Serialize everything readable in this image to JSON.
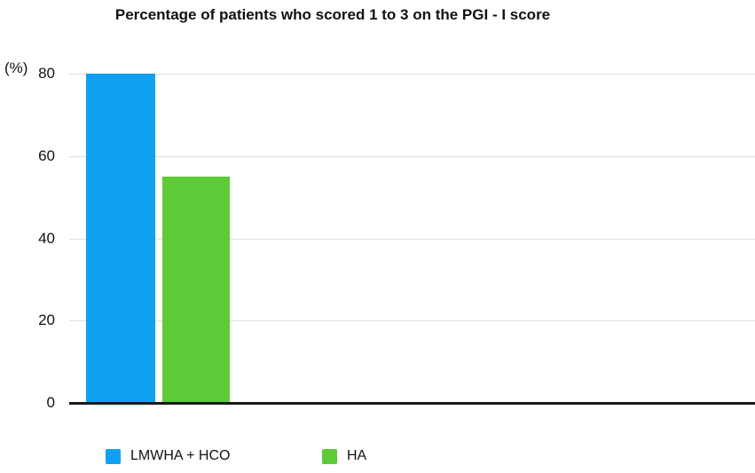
{
  "chart_data": {
    "type": "bar",
    "title": "Percentage of patients who scored 1 to 3 on the PGI - I score",
    "ylabel": "(%)",
    "categories": [
      "LMWHA + HCO",
      "HA"
    ],
    "bars": [
      {
        "label": "LMWHA + HCO",
        "value": 80,
        "color": "#0FA0F2"
      },
      {
        "label": "HA",
        "value": 55,
        "color": "#5DCB37"
      }
    ],
    "yticks": [
      0,
      20,
      40,
      60,
      80
    ],
    "ylim": [
      0,
      80
    ],
    "grid": true,
    "grid_color": "#dddddd",
    "axis_color": "#1a1a1a",
    "legend_position": "bottom"
  }
}
